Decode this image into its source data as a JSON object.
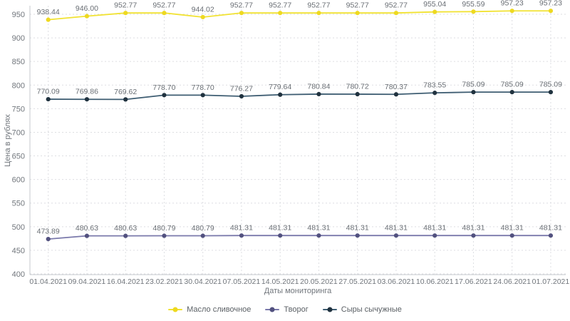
{
  "chart_data": {
    "type": "line",
    "title": "",
    "xlabel": "Даты мониторинга",
    "ylabel": "Цена в рублях",
    "ylim": [
      400,
      950
    ],
    "ytick_step": 50,
    "grid": true,
    "grid_style": "dotted",
    "legend_position": "bottom",
    "background": "#ffffff",
    "axis_color": "#c6c9ce",
    "grid_color": "#dddee2",
    "tick_label_color": "#71767c",
    "data_label_color": "#696e74",
    "categories": [
      "01.04.2021",
      "09.04.2021",
      "16.04.2021",
      "23.02.2021",
      "30.04.2021",
      "07.05.2021",
      "14.05.2021",
      "20.05.2021",
      "27.05.2021",
      "03.06.2021",
      "10.06.2021",
      "17.06.2021",
      "24.06.2021",
      "01.07.2021"
    ],
    "series": [
      {
        "name": "Масло сливочное",
        "color": "#f1e232",
        "dot_color": "#eed920",
        "values": [
          938.44,
          946.0,
          952.77,
          952.77,
          944.02,
          952.77,
          952.77,
          952.77,
          952.77,
          952.77,
          955.04,
          955.59,
          957.23,
          957.23
        ]
      },
      {
        "name": "Творог",
        "color": "#7a79ab",
        "dot_color": "#52517f",
        "values": [
          473.89,
          480.63,
          480.63,
          480.79,
          480.79,
          481.31,
          481.31,
          481.31,
          481.31,
          481.31,
          481.31,
          481.31,
          481.31,
          481.31
        ]
      },
      {
        "name": "Сыры сычужные",
        "color": "#3e5d72",
        "dot_color": "#20323f",
        "values": [
          770.09,
          769.86,
          769.62,
          778.7,
          778.7,
          776.27,
          779.64,
          780.84,
          780.72,
          780.37,
          783.55,
          785.09,
          785.09,
          785.09
        ]
      }
    ]
  }
}
